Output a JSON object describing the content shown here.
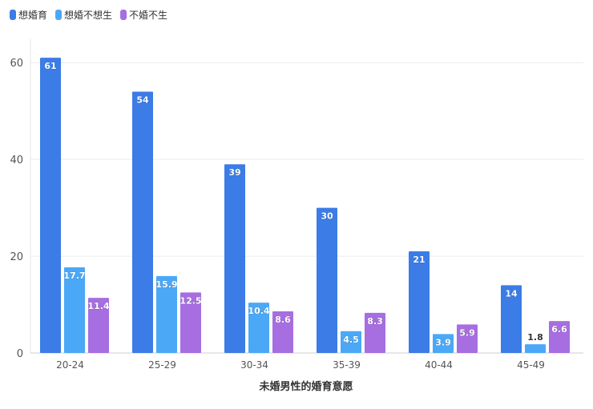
{
  "chart_data": {
    "type": "bar",
    "title": "",
    "xlabel": "未婚男性的婚育意愿",
    "ylabel": "",
    "categories": [
      "20-24",
      "25-29",
      "30-34",
      "35-39",
      "40-44",
      "45-49"
    ],
    "series": [
      {
        "name": "想婚育",
        "color": "#3b7ce6",
        "values": [
          61,
          54,
          39,
          30,
          21,
          14
        ]
      },
      {
        "name": "想婚不想生",
        "color": "#4ba8f7",
        "values": [
          17.7,
          15.9,
          10.4,
          4.5,
          3.9,
          1.8
        ]
      },
      {
        "name": "不婚不生",
        "color": "#a66ee0",
        "values": [
          11.4,
          12.5,
          8.6,
          8.3,
          5.9,
          6.6
        ]
      }
    ],
    "ylim": [
      0,
      65
    ],
    "yticks": [
      0,
      20,
      40,
      60
    ],
    "grid": true,
    "legend_position": "top-left"
  }
}
